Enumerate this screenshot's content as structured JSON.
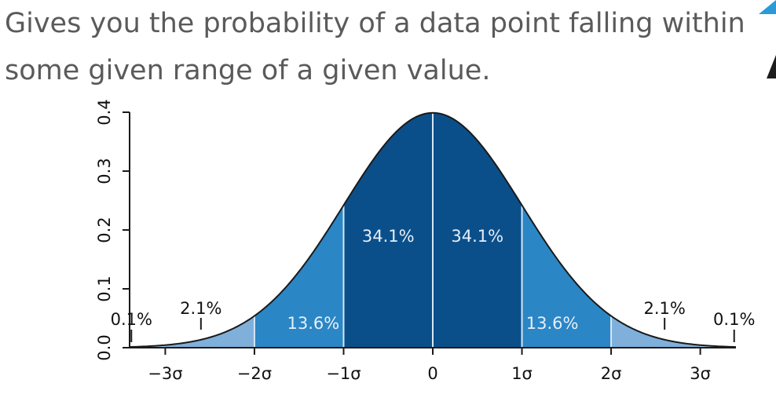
{
  "slide": {
    "line1": "Gives you the probability of a data point falling within",
    "line2": "some given range of a given value."
  },
  "colors": {
    "band_inner": "#0b4f8a",
    "band_mid": "#2b86c5",
    "band_outer": "#7fb0dc",
    "band_tail": "#a9cbe8",
    "divider": "#d6e6f5",
    "curve": "#1a1a1a",
    "label_dark": "#111111",
    "label_light": "#e6eff8",
    "accent": "#2a9bd8"
  },
  "chart_data": {
    "type": "area",
    "distribution": "normal",
    "mean": 0,
    "sd": 1,
    "xlim": [
      -3.4,
      3.4
    ],
    "ylim": [
      0,
      0.4
    ],
    "x_ticks": [
      {
        "value": -3,
        "label": "−3σ"
      },
      {
        "value": -2,
        "label": "−2σ"
      },
      {
        "value": -1,
        "label": "−1σ"
      },
      {
        "value": 0,
        "label": "0"
      },
      {
        "value": 1,
        "label": "1σ"
      },
      {
        "value": 2,
        "label": "2σ"
      },
      {
        "value": 3,
        "label": "3σ"
      }
    ],
    "y_ticks": [
      {
        "value": 0.0,
        "label": "0.0"
      },
      {
        "value": 0.1,
        "label": "0.1"
      },
      {
        "value": 0.2,
        "label": "0.2"
      },
      {
        "value": 0.3,
        "label": "0.3"
      },
      {
        "value": 0.4,
        "label": "0.4"
      }
    ],
    "bands": [
      {
        "from": -1,
        "to": 0,
        "percent": "34.1%",
        "shade": "inner"
      },
      {
        "from": 0,
        "to": 1,
        "percent": "34.1%",
        "shade": "inner"
      },
      {
        "from": -2,
        "to": -1,
        "percent": "13.6%",
        "shade": "mid"
      },
      {
        "from": 1,
        "to": 2,
        "percent": "13.6%",
        "shade": "mid"
      },
      {
        "from": -3,
        "to": -2,
        "percent": "2.1%",
        "shade": "outer"
      },
      {
        "from": 2,
        "to": 3,
        "percent": "2.1%",
        "shade": "outer"
      },
      {
        "from": -3.4,
        "to": -3,
        "percent": "0.1%",
        "shade": "tail"
      },
      {
        "from": 3,
        "to": 3.4,
        "percent": "0.1%",
        "shade": "tail"
      }
    ],
    "grid": false,
    "legend": "none"
  }
}
